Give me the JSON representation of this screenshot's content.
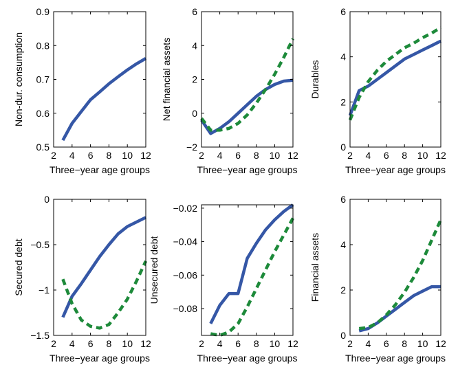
{
  "colors": {
    "solid": "#3557a6",
    "dashed": "#1d8a3a",
    "axis": "#000000"
  },
  "chart_data": [
    {
      "type": "line",
      "xlabel": "Three−year age groups",
      "ylabel": "Non-dur. consumption",
      "xlim": [
        2,
        12
      ],
      "ylim": [
        0.5,
        0.9
      ],
      "xticks": [
        2,
        4,
        6,
        8,
        10,
        12
      ],
      "yticks": [
        0.5,
        0.6,
        0.7,
        0.8,
        0.9
      ],
      "ytick_labels": [
        "0.5",
        "0.6",
        "0.7",
        "0.8",
        "0.9"
      ],
      "series": [
        {
          "style": "solid",
          "x": [
            3,
            4,
            5,
            6,
            7,
            8,
            9,
            10,
            11,
            12
          ],
          "y": [
            0.52,
            0.57,
            0.605,
            0.64,
            0.663,
            0.687,
            0.708,
            0.728,
            0.746,
            0.762
          ]
        }
      ]
    },
    {
      "type": "line",
      "xlabel": "Three−year age groups",
      "ylabel": "Net financial assets",
      "xlim": [
        2,
        12
      ],
      "ylim": [
        -2,
        6
      ],
      "xticks": [
        2,
        4,
        6,
        8,
        10,
        12
      ],
      "yticks": [
        -2,
        0,
        2,
        4,
        6
      ],
      "ytick_labels": [
        "−2",
        "0",
        "2",
        "4",
        "6"
      ],
      "series": [
        {
          "style": "solid",
          "x": [
            2,
            3,
            4,
            5,
            6,
            7,
            8,
            9,
            10,
            11,
            12
          ],
          "y": [
            -0.4,
            -1.2,
            -0.9,
            -0.5,
            0.0,
            0.5,
            1.0,
            1.4,
            1.7,
            1.9,
            1.95
          ]
        },
        {
          "style": "dashed",
          "x": [
            2,
            3,
            4,
            5,
            6,
            7,
            8,
            9,
            10,
            11,
            12
          ],
          "y": [
            -0.3,
            -1.0,
            -1.0,
            -0.9,
            -0.6,
            -0.1,
            0.6,
            1.4,
            2.3,
            3.3,
            4.4
          ]
        }
      ]
    },
    {
      "type": "line",
      "xlabel": "Three−year age groups",
      "ylabel": "Durables",
      "xlim": [
        2,
        12
      ],
      "ylim": [
        0,
        6
      ],
      "xticks": [
        2,
        4,
        6,
        8,
        10,
        12
      ],
      "yticks": [
        0,
        2,
        4,
        6
      ],
      "ytick_labels": [
        "0",
        "2",
        "4",
        "6"
      ],
      "series": [
        {
          "style": "solid",
          "x": [
            2,
            3,
            4,
            5,
            6,
            7,
            8,
            9,
            10,
            11,
            12
          ],
          "y": [
            1.4,
            2.5,
            2.7,
            3.0,
            3.3,
            3.6,
            3.9,
            4.1,
            4.3,
            4.5,
            4.7
          ]
        },
        {
          "style": "dashed",
          "x": [
            2,
            3,
            4,
            5,
            6,
            7,
            8,
            9,
            10,
            11,
            12
          ],
          "y": [
            1.2,
            2.2,
            2.9,
            3.4,
            3.8,
            4.1,
            4.4,
            4.6,
            4.85,
            5.05,
            5.3
          ]
        }
      ]
    },
    {
      "type": "line",
      "xlabel": "Three−year age groups",
      "ylabel": "Secured debt",
      "xlim": [
        2,
        12
      ],
      "ylim": [
        -1.5,
        0
      ],
      "xticks": [
        2,
        4,
        6,
        8,
        10,
        12
      ],
      "yticks": [
        -1.5,
        -1,
        -0.5,
        0
      ],
      "ytick_labels": [
        "−1.5",
        "−1",
        "−0.5",
        "0"
      ],
      "series": [
        {
          "style": "solid",
          "x": [
            3,
            4,
            5,
            6,
            7,
            8,
            9,
            10,
            11,
            12
          ],
          "y": [
            -1.3,
            -1.07,
            -0.93,
            -0.78,
            -0.63,
            -0.5,
            -0.38,
            -0.3,
            -0.25,
            -0.2
          ]
        },
        {
          "style": "dashed",
          "x": [
            3,
            4,
            5,
            6,
            7,
            8,
            9,
            10,
            11,
            12
          ],
          "y": [
            -0.88,
            -1.15,
            -1.33,
            -1.4,
            -1.42,
            -1.38,
            -1.25,
            -1.1,
            -0.9,
            -0.68
          ]
        }
      ]
    },
    {
      "type": "line",
      "xlabel": "Three−year age groups",
      "ylabel": "Unsecured debt",
      "xlim": [
        2,
        12
      ],
      "ylim": [
        -0.096,
        -0.018
      ],
      "xticks": [
        2,
        4,
        6,
        8,
        10,
        12
      ],
      "yticks": [
        -0.08,
        -0.06,
        -0.04,
        -0.02
      ],
      "ytick_labels": [
        "−0.08",
        "−0.06",
        "−0.04",
        "−0.02"
      ],
      "series": [
        {
          "style": "solid",
          "x": [
            3,
            4,
            5,
            6,
            7,
            8,
            9,
            10,
            11,
            12
          ],
          "y": [
            -0.089,
            -0.078,
            -0.071,
            -0.071,
            -0.05,
            -0.041,
            -0.033,
            -0.027,
            -0.022,
            -0.018
          ]
        },
        {
          "style": "dashed",
          "x": [
            3,
            4,
            5,
            6,
            7,
            8,
            9,
            10,
            11,
            12
          ],
          "y": [
            -0.095,
            -0.096,
            -0.094,
            -0.089,
            -0.079,
            -0.068,
            -0.057,
            -0.046,
            -0.036,
            -0.026
          ]
        }
      ]
    },
    {
      "type": "line",
      "xlabel": "Three−year age groups",
      "ylabel": "Financial assets",
      "xlim": [
        2,
        12
      ],
      "ylim": [
        0,
        6
      ],
      "xticks": [
        2,
        4,
        6,
        8,
        10,
        12
      ],
      "yticks": [
        0,
        2,
        4,
        6
      ],
      "ytick_labels": [
        "0",
        "2",
        "4",
        "6"
      ],
      "series": [
        {
          "style": "solid",
          "x": [
            3,
            4,
            5,
            6,
            7,
            8,
            9,
            10,
            11,
            12
          ],
          "y": [
            0.2,
            0.3,
            0.55,
            0.85,
            1.15,
            1.45,
            1.75,
            1.95,
            2.15,
            2.15
          ]
        },
        {
          "style": "dashed",
          "x": [
            3,
            4,
            5,
            6,
            7,
            8,
            9,
            10,
            11,
            12
          ],
          "y": [
            0.3,
            0.35,
            0.55,
            0.9,
            1.35,
            1.9,
            2.55,
            3.3,
            4.2,
            5.1
          ]
        }
      ]
    }
  ]
}
